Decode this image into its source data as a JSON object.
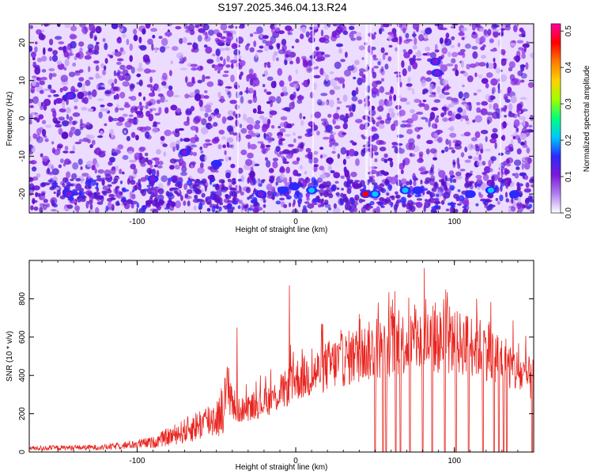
{
  "figure": {
    "title": "S197.2025.346.04.13.R24"
  },
  "chart_data": [
    {
      "type": "heatmap",
      "xlabel": "Height of straight line (km)",
      "ylabel": "Frequency (Hz)",
      "xlim": [
        -168,
        150
      ],
      "ylim": [
        -25,
        25
      ],
      "xticks": [
        -100,
        0,
        100
      ],
      "yticks": [
        -20,
        -10,
        0,
        10,
        20
      ],
      "colorbar": {
        "label": "Normalized spectral amplitude",
        "range": [
          0.0,
          0.52
        ],
        "ticks": [
          "0.0",
          "0.1",
          "0.2",
          "0.3",
          "0.4",
          "0.5"
        ],
        "colors": [
          "#ffffff",
          "#b07ff0",
          "#7b1ad8",
          "#2a2aff",
          "#00c8ff",
          "#00ff7a",
          "#a0ff00",
          "#ffd200",
          "#ff7a00",
          "#ff0000",
          "#ff00a0"
        ]
      },
      "hotspots": [
        {
          "x": -142,
          "y": 6,
          "amp": 0.12
        },
        {
          "x": 88,
          "y": 15,
          "amp": 0.12
        },
        {
          "x": 89,
          "y": 12,
          "amp": 0.11
        },
        {
          "x": 89,
          "y": 12,
          "amp": 0.1
        },
        {
          "x": -50,
          "y": -12,
          "amp": 0.14
        },
        {
          "x": -70,
          "y": -9,
          "amp": 0.1
        },
        {
          "x": 10,
          "y": -19,
          "amp": 0.22
        },
        {
          "x": -8,
          "y": -19,
          "amp": 0.15
        },
        {
          "x": -1,
          "y": -18,
          "amp": 0.14
        },
        {
          "x": 44,
          "y": -20,
          "amp": 0.45
        },
        {
          "x": 50,
          "y": -20,
          "amp": 0.2
        },
        {
          "x": 69,
          "y": -19,
          "amp": 0.22
        },
        {
          "x": 77,
          "y": -19,
          "amp": 0.13
        },
        {
          "x": 110,
          "y": -20,
          "amp": 0.18
        },
        {
          "x": 123,
          "y": -19,
          "amp": 0.2
        },
        {
          "x": 138,
          "y": -20,
          "amp": 0.13
        },
        {
          "x": -143,
          "y": -20,
          "amp": 0.12
        },
        {
          "x": -90,
          "y": -16,
          "amp": 0.1
        },
        {
          "x": -22,
          "y": -20,
          "amp": 0.11
        }
      ]
    },
    {
      "type": "line",
      "xlabel": "Height of straight line (km)",
      "ylabel": "SNR (10 * v/v)",
      "xlim": [
        -168,
        150
      ],
      "ylim": [
        0,
        1000
      ],
      "xticks": [
        -100,
        0,
        100
      ],
      "yticks": [
        0,
        200,
        400,
        600,
        800
      ],
      "series": [
        {
          "color": "#e8241e",
          "trend_x": [
            -168,
            -120,
            -90,
            -70,
            -48,
            -42,
            -38,
            -30,
            -20,
            -10,
            0,
            10,
            20,
            40,
            60,
            80,
            100,
            110,
            125,
            138,
            144,
            150
          ],
          "trend_y": [
            20,
            25,
            50,
            110,
            190,
            350,
            210,
            230,
            260,
            300,
            380,
            400,
            450,
            510,
            560,
            580,
            570,
            560,
            520,
            430,
            390,
            380
          ],
          "peaks_x": [
            -37,
            -4,
            40,
            52,
            60,
            75,
            81,
            88,
            97,
            114,
            122
          ],
          "peaks_y": [
            650,
            870,
            720,
            780,
            760,
            770,
            960,
            780,
            760,
            800,
            680
          ],
          "dropouts_x": [
            50,
            55,
            57,
            63,
            66,
            72,
            80,
            86,
            94,
            101,
            109,
            118,
            125,
            128,
            131,
            133,
            149
          ]
        }
      ]
    }
  ]
}
